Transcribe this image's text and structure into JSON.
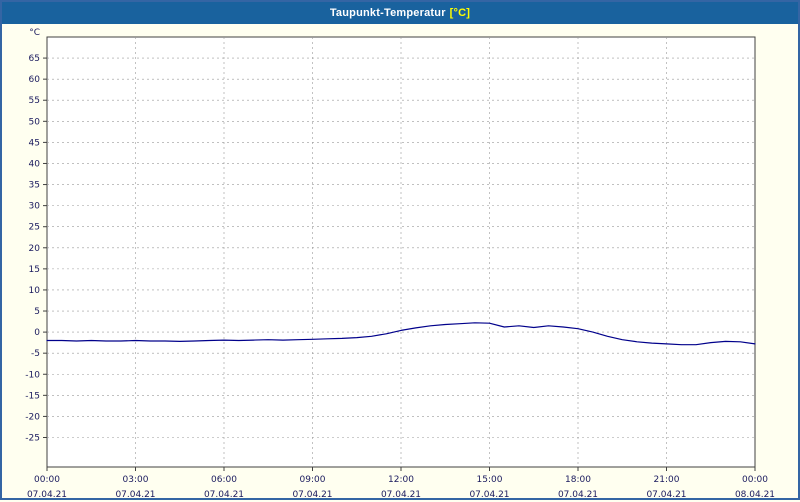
{
  "title": {
    "main": "Taupunkt-Temperatur",
    "unit": "[°C]"
  },
  "colors": {
    "titlebar": "#19629e",
    "title_text": "#ffffff",
    "title_unit": "#ffff00",
    "page_background": "#fffff0",
    "plot_background": "#ffffff",
    "plot_border": "#404040",
    "grid": "#9a9a9a",
    "axis_text": "#1a1a5e",
    "line": "#00008b",
    "outer_border": "#3465a4"
  },
  "chart_data": {
    "type": "line",
    "title": "Taupunkt-Temperatur [°C]",
    "ylabel": "°C",
    "xlabel": "",
    "series": [
      {
        "name": "Taupunkt-Temperatur",
        "x_hours": [
          0,
          0.5,
          1,
          1.5,
          2,
          2.5,
          3,
          3.5,
          4,
          4.5,
          5,
          5.5,
          6,
          6.5,
          7,
          7.5,
          8,
          8.5,
          9,
          9.5,
          10,
          10.5,
          11,
          11.5,
          12,
          12.5,
          13,
          13.5,
          14,
          14.5,
          15,
          15.5,
          16,
          16.5,
          17,
          17.5,
          18,
          18.5,
          19,
          19.5,
          20,
          20.5,
          21,
          21.5,
          22,
          22.5,
          23,
          23.5,
          24
        ],
        "values": [
          -2.0,
          -2.0,
          -2.1,
          -2.0,
          -2.1,
          -2.1,
          -2.0,
          -2.1,
          -2.1,
          -2.2,
          -2.1,
          -2.0,
          -1.9,
          -2.0,
          -1.9,
          -1.8,
          -1.9,
          -1.8,
          -1.7,
          -1.6,
          -1.5,
          -1.3,
          -1.0,
          -0.4,
          0.4,
          1.0,
          1.5,
          1.8,
          2.0,
          2.2,
          2.1,
          1.2,
          1.5,
          1.1,
          1.5,
          1.2,
          0.8,
          0.0,
          -1.0,
          -1.8,
          -2.3,
          -2.6,
          -2.8,
          -3.0,
          -3.0,
          -2.5,
          -2.2,
          -2.3,
          -2.8
        ]
      }
    ],
    "xlim": [
      0,
      24
    ],
    "ylim": [
      -32,
      70
    ],
    "ytick_min": -25,
    "ytick_max": 65,
    "ytick_step": 5,
    "xtick_hours": [
      0,
      3,
      6,
      9,
      12,
      15,
      18,
      21,
      24
    ],
    "xtick_labels": [
      "00:00",
      "03:00",
      "06:00",
      "09:00",
      "12:00",
      "15:00",
      "18:00",
      "21:00",
      "00:00"
    ],
    "xtick_dates": [
      "07.04.21",
      "07.04.21",
      "07.04.21",
      "07.04.21",
      "07.04.21",
      "07.04.21",
      "07.04.21",
      "07.04.21",
      "08.04.21"
    ],
    "grid": "dashed",
    "legend": "none"
  }
}
